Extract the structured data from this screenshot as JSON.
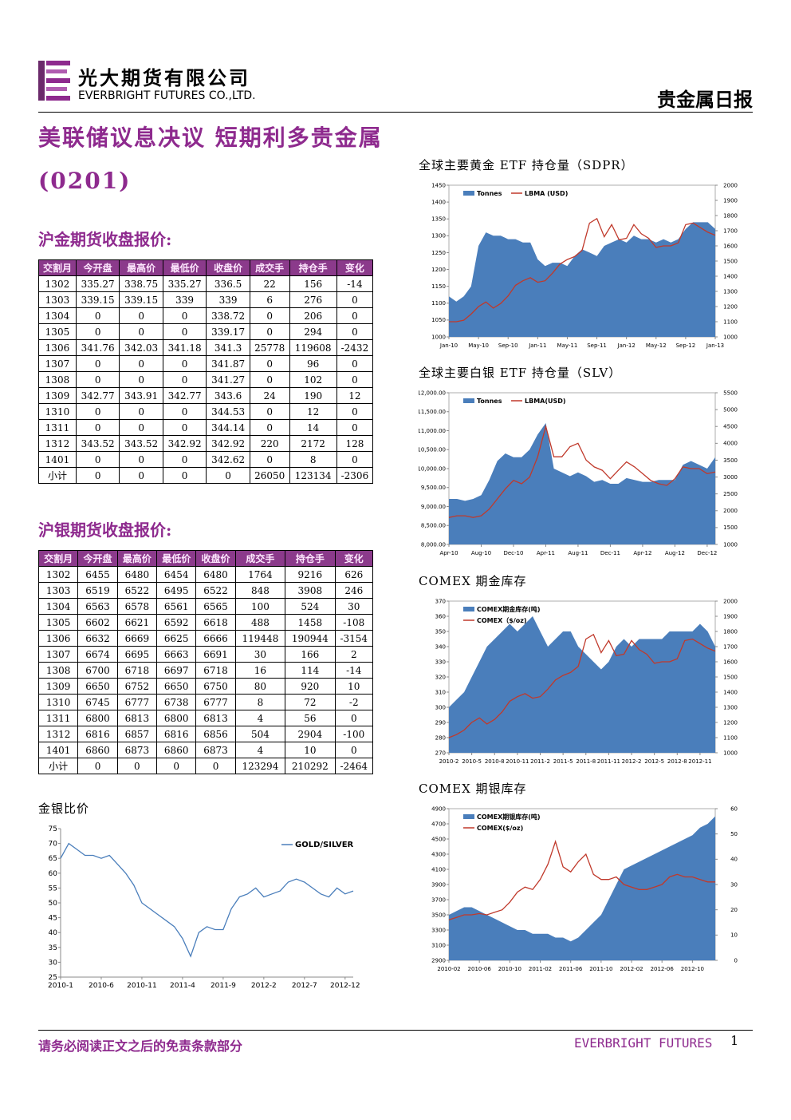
{
  "header": {
    "company_cn": "光大期货有限公司",
    "company_en": "EVERBRIGHT FUTURES CO.,LTD.",
    "report_type": "贵金属日报"
  },
  "title": "美联储议息决议 短期利多贵金属(0201)",
  "gold_table": {
    "heading": "沪金期货收盘报价:",
    "columns": [
      "交割月",
      "今开盘",
      "最高价",
      "最低价",
      "收盘价",
      "成交手",
      "持仓手",
      "变化"
    ],
    "rows": [
      [
        "1302",
        "335.27",
        "338.75",
        "335.27",
        "336.5",
        "22",
        "156",
        "-14"
      ],
      [
        "1303",
        "339.15",
        "339.15",
        "339",
        "339",
        "6",
        "276",
        "0"
      ],
      [
        "1304",
        "0",
        "0",
        "0",
        "338.72",
        "0",
        "206",
        "0"
      ],
      [
        "1305",
        "0",
        "0",
        "0",
        "339.17",
        "0",
        "294",
        "0"
      ],
      [
        "1306",
        "341.76",
        "342.03",
        "341.18",
        "341.3",
        "25778",
        "119608",
        "-2432"
      ],
      [
        "1307",
        "0",
        "0",
        "0",
        "341.87",
        "0",
        "96",
        "0"
      ],
      [
        "1308",
        "0",
        "0",
        "0",
        "341.27",
        "0",
        "102",
        "0"
      ],
      [
        "1309",
        "342.77",
        "343.91",
        "342.77",
        "343.6",
        "24",
        "190",
        "12"
      ],
      [
        "1310",
        "0",
        "0",
        "0",
        "344.53",
        "0",
        "12",
        "0"
      ],
      [
        "1311",
        "0",
        "0",
        "0",
        "344.14",
        "0",
        "14",
        "0"
      ],
      [
        "1312",
        "343.52",
        "343.52",
        "342.92",
        "342.92",
        "220",
        "2172",
        "128"
      ],
      [
        "1401",
        "0",
        "0",
        "0",
        "342.62",
        "0",
        "8",
        "0"
      ],
      [
        "小计",
        "0",
        "0",
        "0",
        "0",
        "26050",
        "123134",
        "-2306"
      ]
    ]
  },
  "silver_table": {
    "heading": "沪银期货收盘报价:",
    "columns": [
      "交割月",
      "今开盘",
      "最高价",
      "最低价",
      "收盘价",
      "成交手",
      "持仓手",
      "变化"
    ],
    "rows": [
      [
        "1302",
        "6455",
        "6480",
        "6454",
        "6480",
        "1764",
        "9216",
        "626"
      ],
      [
        "1303",
        "6519",
        "6522",
        "6495",
        "6522",
        "848",
        "3908",
        "246"
      ],
      [
        "1304",
        "6563",
        "6578",
        "6561",
        "6565",
        "100",
        "524",
        "30"
      ],
      [
        "1305",
        "6602",
        "6621",
        "6592",
        "6618",
        "488",
        "1458",
        "-108"
      ],
      [
        "1306",
        "6632",
        "6669",
        "6625",
        "6666",
        "119448",
        "190944",
        "-3154"
      ],
      [
        "1307",
        "6674",
        "6695",
        "6663",
        "6691",
        "30",
        "166",
        "2"
      ],
      [
        "1308",
        "6700",
        "6718",
        "6697",
        "6718",
        "16",
        "114",
        "-14"
      ],
      [
        "1309",
        "6650",
        "6752",
        "6650",
        "6750",
        "80",
        "920",
        "10"
      ],
      [
        "1310",
        "6745",
        "6777",
        "6738",
        "6777",
        "8",
        "72",
        "-2"
      ],
      [
        "1311",
        "6800",
        "6813",
        "6800",
        "6813",
        "4",
        "56",
        "0"
      ],
      [
        "1312",
        "6816",
        "6857",
        "6816",
        "6856",
        "504",
        "2904",
        "-100"
      ],
      [
        "1401",
        "6860",
        "6873",
        "6860",
        "6873",
        "4",
        "10",
        "0"
      ],
      [
        "小计",
        "0",
        "0",
        "0",
        "0",
        "123294",
        "210292",
        "-2464"
      ]
    ]
  },
  "chart_data": [
    {
      "type": "combo",
      "title": "全球主要黄金 ETF 持仓量（SDPR）",
      "legend": "upper left",
      "categories": [
        "Jan-10",
        null,
        null,
        null,
        "May-10",
        null,
        null,
        null,
        "Sep-10",
        null,
        null,
        null,
        "Jan-11",
        null,
        null,
        null,
        "May-11",
        null,
        null,
        null,
        "Sep-11",
        null,
        null,
        null,
        "Jan-12",
        null,
        null,
        null,
        "May-12",
        null,
        null,
        null,
        "Sep-12",
        null,
        null,
        null,
        "Jan-13"
      ],
      "ylim": [
        1000,
        1450
      ],
      "yticks": [
        1000,
        1050,
        1100,
        1150,
        1200,
        1250,
        1300,
        1350,
        1400,
        1450
      ],
      "y2lim": [
        1000,
        2000
      ],
      "y2ticks": [
        1000,
        1100,
        1200,
        1300,
        1400,
        1500,
        1600,
        1700,
        1800,
        1900,
        2000
      ],
      "series": [
        {
          "name": "Tonnes",
          "style": "area",
          "color": "#4a7ebb",
          "values": [
            1120,
            1105,
            1120,
            1150,
            1270,
            1310,
            1300,
            1300,
            1290,
            1290,
            1280,
            1280,
            1230,
            1210,
            1220,
            1220,
            1210,
            1240,
            1260,
            1250,
            1240,
            1270,
            1280,
            1290,
            1280,
            1300,
            1290,
            1290,
            1280,
            1290,
            1280,
            1290,
            1320,
            1340,
            1340,
            1340,
            1320
          ]
        },
        {
          "name": "LBMA (USD)",
          "style": "line",
          "axis": "y2",
          "color": "#c0392b",
          "values": [
            1100,
            1100,
            1110,
            1150,
            1200,
            1230,
            1190,
            1220,
            1270,
            1340,
            1370,
            1390,
            1360,
            1370,
            1420,
            1480,
            1510,
            1530,
            1570,
            1750,
            1780,
            1660,
            1740,
            1640,
            1650,
            1740,
            1680,
            1650,
            1590,
            1600,
            1600,
            1620,
            1740,
            1750,
            1720,
            1690,
            1670
          ]
        }
      ]
    },
    {
      "type": "combo",
      "title": "全球主要白银 ETF 持仓量（SLV）",
      "legend": "upper left",
      "categories": [
        "Apr-10",
        null,
        null,
        null,
        "Aug-10",
        null,
        null,
        null,
        "Dec-10",
        null,
        null,
        null,
        "Apr-11",
        null,
        null,
        null,
        "Aug-11",
        null,
        null,
        null,
        "Dec-11",
        null,
        null,
        null,
        "Apr-12",
        null,
        null,
        null,
        "Aug-12",
        null,
        null,
        null,
        "Dec-12",
        null
      ],
      "ylim": [
        8000,
        12000
      ],
      "yticks": [
        {
          "value": 8000,
          "label": "8,000.00"
        },
        {
          "value": 8500,
          "label": "8,500.00"
        },
        {
          "value": 9000,
          "label": "9,000.00"
        },
        {
          "value": 9500,
          "label": "9,500.00"
        },
        {
          "value": 10000,
          "label": "10,000.00"
        },
        {
          "value": 10500,
          "label": "10,500.00"
        },
        {
          "value": 11000,
          "label": "11,000.00"
        },
        {
          "value": 11500,
          "label": "11,500.00"
        },
        {
          "value": 12000,
          "label": "12,000.00"
        }
      ],
      "y2lim": [
        1000,
        5500
      ],
      "y2ticks": [
        1000,
        1500,
        2000,
        2500,
        3000,
        3500,
        4000,
        4500,
        5000,
        5500
      ],
      "series": [
        {
          "name": "Tonnes",
          "style": "area",
          "color": "#4a7ebb",
          "values": [
            9200,
            9200,
            9150,
            9200,
            9300,
            9700,
            10200,
            10400,
            10300,
            10300,
            10500,
            10900,
            11200,
            10000,
            9900,
            9800,
            9900,
            9800,
            9650,
            9700,
            9600,
            9600,
            9750,
            9700,
            9650,
            9650,
            9700,
            9700,
            9700,
            10100,
            10200,
            10100,
            10000,
            10300
          ]
        },
        {
          "name": "LBMA(USD)",
          "style": "line",
          "axis": "y2",
          "color": "#c0392b",
          "values": [
            1800,
            1850,
            1850,
            1800,
            1850,
            2050,
            2350,
            2650,
            2900,
            2800,
            3000,
            3600,
            4500,
            3600,
            3600,
            3900,
            4000,
            3500,
            3300,
            3200,
            2950,
            3200,
            3450,
            3300,
            3100,
            2900,
            2800,
            2750,
            2950,
            3300,
            3250,
            3250,
            3100,
            3150
          ]
        }
      ]
    },
    {
      "type": "combo",
      "title": "COMEX 期金库存",
      "legend": "upper left",
      "categories": [
        "2010-2",
        null,
        null,
        "2010-5",
        null,
        null,
        "2010-8",
        null,
        null,
        "2010-11",
        null,
        null,
        "2011-2",
        null,
        null,
        "2011-5",
        null,
        null,
        "2011-8",
        null,
        null,
        "2011-11",
        null,
        null,
        "2012-2",
        null,
        null,
        "2012-5",
        null,
        null,
        "2012-8",
        null,
        null,
        "2012-11",
        null,
        null
      ],
      "ylim": [
        270,
        370
      ],
      "yticks": [
        270,
        280,
        290,
        300,
        310,
        320,
        330,
        340,
        350,
        360,
        370
      ],
      "y2lim": [
        1000,
        2000
      ],
      "y2ticks": [
        1000,
        1100,
        1200,
        1300,
        1400,
        1500,
        1600,
        1700,
        1800,
        1900,
        2000
      ],
      "series": [
        {
          "name": "COMEX期金库存(吨)",
          "style": "area",
          "color": "#4a7ebb",
          "values": [
            300,
            305,
            310,
            320,
            330,
            340,
            345,
            350,
            355,
            350,
            355,
            360,
            350,
            340,
            345,
            350,
            350,
            340,
            335,
            330,
            325,
            330,
            340,
            345,
            340,
            345,
            345,
            345,
            345,
            350,
            350,
            350,
            350,
            355,
            350,
            340
          ]
        },
        {
          "name": "COMEX（$/oz)",
          "style": "line",
          "axis": "y2",
          "color": "#c0392b",
          "values": [
            1100,
            1120,
            1150,
            1200,
            1230,
            1190,
            1220,
            1270,
            1340,
            1370,
            1390,
            1360,
            1370,
            1420,
            1480,
            1510,
            1530,
            1570,
            1750,
            1780,
            1660,
            1740,
            1640,
            1650,
            1740,
            1680,
            1650,
            1590,
            1600,
            1600,
            1620,
            1740,
            1750,
            1720,
            1690,
            1670
          ]
        }
      ]
    },
    {
      "type": "combo",
      "title": "COMEX 期银库存",
      "legend": "upper left",
      "categories": [
        "2010-02",
        null,
        null,
        null,
        "2010-06",
        null,
        null,
        null,
        "2010-10",
        null,
        null,
        null,
        "2011-02",
        null,
        null,
        null,
        "2011-06",
        null,
        null,
        null,
        "2011-10",
        null,
        null,
        null,
        "2012-02",
        null,
        null,
        null,
        "2012-06",
        null,
        null,
        null,
        "2012-10",
        null,
        null,
        null
      ],
      "ylim": [
        2900,
        4900
      ],
      "yticks": [
        2900,
        3100,
        3300,
        3500,
        3700,
        3900,
        4100,
        4300,
        4500,
        4700,
        4900
      ],
      "y2lim": [
        0,
        60
      ],
      "y2ticks": [
        0,
        10,
        20,
        30,
        40,
        50,
        60
      ],
      "series": [
        {
          "name": "COMEX期银库存(吨)",
          "style": "area",
          "color": "#4a7ebb",
          "values": [
            3500,
            3550,
            3600,
            3600,
            3550,
            3500,
            3450,
            3400,
            3350,
            3300,
            3300,
            3250,
            3250,
            3250,
            3200,
            3200,
            3150,
            3200,
            3300,
            3400,
            3500,
            3700,
            3900,
            4100,
            4150,
            4200,
            4250,
            4300,
            4350,
            4400,
            4450,
            4500,
            4550,
            4650,
            4700,
            4800
          ]
        },
        {
          "name": "COMEX($/oz)",
          "style": "line",
          "axis": "y2",
          "color": "#c0392b",
          "values": [
            16,
            17,
            18,
            18,
            18.5,
            18,
            19,
            20,
            23,
            27,
            29,
            28,
            32,
            38,
            47,
            37,
            35,
            39,
            42,
            34,
            32,
            32,
            33,
            30,
            29,
            28,
            28,
            29,
            30,
            33,
            34,
            33,
            33,
            32,
            31,
            31
          ]
        }
      ]
    },
    {
      "type": "line",
      "title": "金银比价",
      "legend": "upper right",
      "categories": [
        "2010-1",
        null,
        null,
        null,
        null,
        "2010-6",
        null,
        null,
        null,
        null,
        "2010-11",
        null,
        null,
        null,
        null,
        "2011-4",
        null,
        null,
        null,
        null,
        "2011-9",
        null,
        null,
        null,
        null,
        "2012-2",
        null,
        null,
        null,
        null,
        "2012-7",
        null,
        null,
        null,
        null,
        "2012-12",
        null
      ],
      "ylim": [
        25,
        75
      ],
      "yticks": [
        25,
        30,
        35,
        40,
        45,
        50,
        55,
        60,
        65,
        70,
        75
      ],
      "series": [
        {
          "name": "GOLD/SILVER",
          "style": "line",
          "color": "#4a7ebb",
          "values": [
            65,
            70,
            68,
            66,
            66,
            65,
            66,
            63,
            60,
            56,
            50,
            48,
            46,
            44,
            42,
            38,
            32,
            40,
            42,
            41,
            41,
            48,
            52,
            53,
            55,
            52,
            53,
            54,
            57,
            58,
            57,
            55,
            53,
            52,
            55,
            53,
            54
          ]
        }
      ]
    }
  ],
  "footer": {
    "disclaimer": "请务必阅读正文之后的免责条款部分",
    "brand": "EVERBRIGHT FUTURES",
    "page": "1"
  }
}
